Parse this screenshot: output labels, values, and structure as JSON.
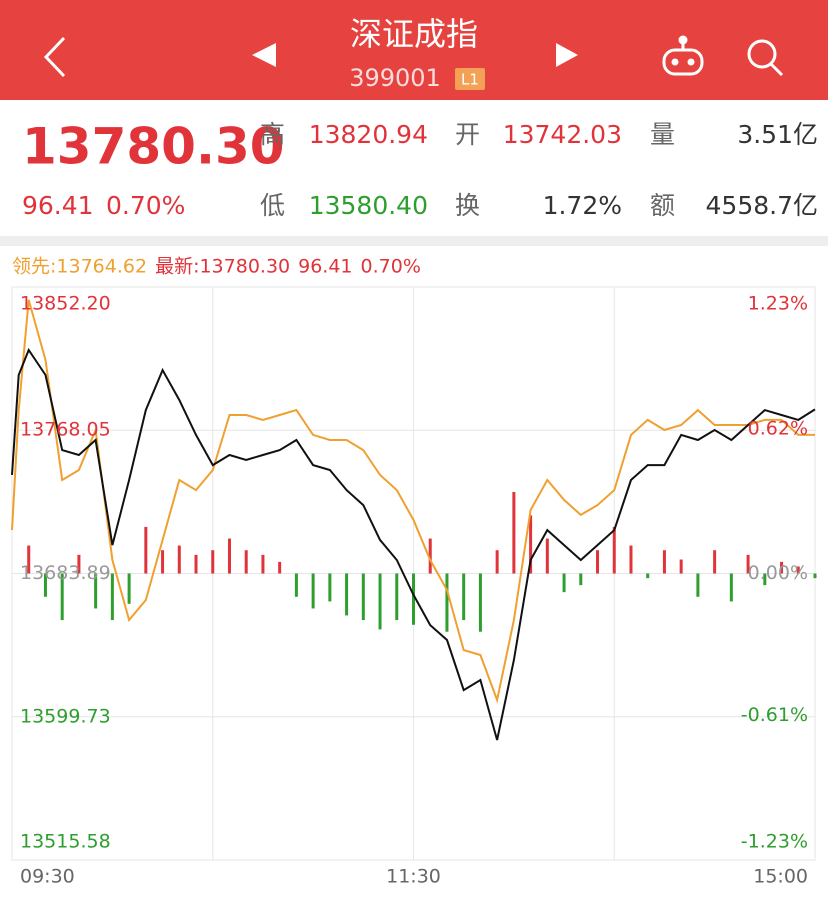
{
  "header": {
    "title": "深证成指",
    "code": "399001",
    "badge": "L1"
  },
  "quote": {
    "price": "13780.30",
    "change": "96.41",
    "change_pct": "0.70%",
    "stats": [
      {
        "label": "高",
        "value": "13820.94"
      },
      {
        "label": "开",
        "value": "13742.03"
      },
      {
        "label": "量",
        "value": "3.51亿"
      },
      {
        "label": "低",
        "value": "13580.40"
      },
      {
        "label": "换",
        "value": "1.72%"
      },
      {
        "label": "额",
        "value": "4558.7亿"
      }
    ]
  },
  "chart_data": {
    "type": "line",
    "legend": [
      "领先:13764.62",
      "最新:13780.30",
      "96.41",
      "0.70%"
    ],
    "x": [
      0,
      2,
      5,
      10,
      15,
      20,
      25,
      30,
      35,
      40,
      45,
      50,
      55,
      60,
      65,
      70,
      75,
      80,
      85,
      90,
      95,
      100,
      105,
      110,
      115,
      120,
      125,
      130,
      135,
      140,
      145,
      150,
      155,
      160,
      165,
      170,
      175,
      180,
      185,
      190,
      195,
      200,
      205,
      210,
      215,
      220,
      225,
      230,
      235,
      240
    ],
    "xlim": [
      0,
      240
    ],
    "xticks": [
      {
        "value": 0,
        "label": "09:30"
      },
      {
        "value": 120,
        "label": "11:30"
      },
      {
        "value": 240,
        "label": "15:00"
      }
    ],
    "xgrid": [
      60,
      120,
      180
    ],
    "ylim": [
      13515.58,
      13852.2
    ],
    "yticks": [
      {
        "value": 13852.2,
        "label": "13852.20"
      },
      {
        "value": 13768.05,
        "label": "13768.05"
      },
      {
        "value": 13683.89,
        "label": "13683.89"
      },
      {
        "value": 13599.73,
        "label": "13599.73"
      },
      {
        "value": 13515.58,
        "label": "13515.58"
      }
    ],
    "y2lim": [
      -1.23,
      1.23
    ],
    "y2ticks": [
      {
        "value": 1.23,
        "label": "1.23%"
      },
      {
        "value": 0.62,
        "label": "0.62%"
      },
      {
        "value": 0,
        "label": "0.00%"
      },
      {
        "value": -0.61,
        "label": "-0.61%"
      },
      {
        "value": -1.23,
        "label": "-1.23%"
      }
    ],
    "grid": true,
    "up_color": "#e0333a",
    "down_color": "#2e9e2e",
    "series": [
      {
        "color": "#f0a030",
        "values": [
          13709.4,
          13779.9,
          13844.6,
          13809.3,
          13738.8,
          13744.7,
          13768.2,
          13691.8,
          13656.6,
          13668.3,
          13703.6,
          13738.8,
          13732.9,
          13744.7,
          13777.0,
          13777.0,
          13774.1,
          13777.0,
          13779.9,
          13765.3,
          13762.3,
          13762.3,
          13756.4,
          13741.8,
          13732.9,
          13715.3,
          13691.8,
          13674.2,
          13638.9,
          13636.0,
          13609.6,
          13656.6,
          13721.2,
          13738.8,
          13727.1,
          13718.3,
          13724.1,
          13732.9,
          13765.3,
          13774.1,
          13768.2,
          13771.1,
          13779.9,
          13771.1,
          13771.1,
          13771.1,
          13774.1,
          13774.1,
          13765.3,
          13765.3
        ]
      },
      {
        "color": "#111111",
        "values": [
          13741.8,
          13800.5,
          13815.2,
          13800.5,
          13756.4,
          13753.5,
          13762.3,
          13700.6,
          13738.8,
          13779.9,
          13803.4,
          13785.8,
          13765.3,
          13747.6,
          13753.5,
          13750.6,
          13753.5,
          13756.4,
          13762.3,
          13747.6,
          13744.7,
          13732.9,
          13724.1,
          13703.6,
          13691.8,
          13671.3,
          13653.6,
          13644.8,
          13615.4,
          13621.3,
          13586.1,
          13633.1,
          13691.8,
          13709.4,
          13700.6,
          13691.8,
          13700.6,
          13709.4,
          13738.8,
          13747.6,
          13747.6,
          13765.3,
          13762.3,
          13768.2,
          13762.3,
          13771.1,
          13779.9,
          13777.0,
          13774.1,
          13780.3
        ]
      }
    ],
    "bars": {
      "axis": "y2",
      "x": [
        5,
        10,
        15,
        20,
        25,
        30,
        35,
        40,
        45,
        50,
        55,
        60,
        65,
        70,
        75,
        80,
        85,
        90,
        95,
        100,
        105,
        110,
        115,
        120,
        125,
        130,
        135,
        140,
        145,
        150,
        155,
        160,
        165,
        170,
        175,
        180,
        185,
        190,
        195,
        200,
        205,
        210,
        215,
        220,
        225,
        230,
        235,
        240
      ],
      "values": [
        0.12,
        -0.1,
        -0.2,
        0.08,
        -0.15,
        -0.2,
        -0.13,
        0.2,
        0.1,
        0.12,
        0.08,
        0.1,
        0.15,
        0.1,
        0.08,
        0.05,
        -0.1,
        -0.15,
        -0.12,
        -0.18,
        -0.2,
        -0.24,
        -0.2,
        -0.22,
        0.15,
        -0.25,
        -0.2,
        -0.25,
        0.1,
        0.35,
        0.25,
        0.15,
        -0.08,
        -0.05,
        0.1,
        0.2,
        0.12,
        -0.02,
        0.1,
        0.06,
        -0.1,
        0.1,
        -0.12,
        0.08,
        -0.05,
        0.05,
        0.03,
        -0.02
      ]
    }
  }
}
